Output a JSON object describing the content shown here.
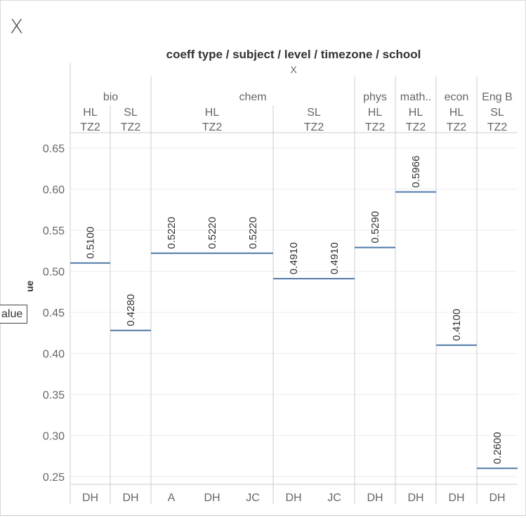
{
  "window": {
    "close_label": "X"
  },
  "header": {
    "title": "coeff type / subject / level / timezone / school",
    "subtitle": "X"
  },
  "axis": {
    "value_label": "alue",
    "value_label_rotated": "ue"
  },
  "colors": {
    "mark": "#4e79a7",
    "grid": "#eeeeee",
    "divider": "#cccccc",
    "text": "#666666"
  },
  "chart_data": {
    "type": "bar",
    "title": "coeff type / subject / level / timezone / school",
    "ylabel": "Value",
    "ylim": [
      0.24,
      0.67
    ],
    "yticks": [
      "0.65",
      "0.60",
      "0.55",
      "0.50",
      "0.45",
      "0.40",
      "0.35",
      "0.30",
      "0.25"
    ],
    "grid": true,
    "mark_style": "reference-line",
    "subjects": [
      {
        "name": "bio",
        "span": 2
      },
      {
        "name": "chem",
        "span": 5
      },
      {
        "name": "phys",
        "span": 1
      },
      {
        "name": "math..",
        "span": 1
      },
      {
        "name": "econ",
        "span": 1
      },
      {
        "name": "Eng B",
        "span": 1
      }
    ],
    "levels": [
      {
        "level": "HL",
        "timezone": "TZ2",
        "span": 1
      },
      {
        "level": "SL",
        "timezone": "TZ2",
        "span": 1
      },
      {
        "level": "HL",
        "timezone": "TZ2",
        "span": 3
      },
      {
        "level": "SL",
        "timezone": "TZ2",
        "span": 2
      },
      {
        "level": "HL",
        "timezone": "TZ2",
        "span": 1
      },
      {
        "level": "HL",
        "timezone": "TZ2",
        "span": 1
      },
      {
        "level": "HL",
        "timezone": "TZ2",
        "span": 1
      },
      {
        "level": "SL",
        "timezone": "TZ2",
        "span": 1
      }
    ],
    "categories": [
      "DH",
      "DH",
      "A",
      "DH",
      "JC",
      "DH",
      "JC",
      "DH",
      "DH",
      "DH",
      "DH"
    ],
    "values": [
      0.51,
      0.428,
      0.522,
      0.522,
      0.522,
      0.491,
      0.491,
      0.529,
      0.5966,
      0.41,
      0.26
    ],
    "value_labels": [
      "0.5100",
      "0.4280",
      "0.5220",
      "0.5220",
      "0.5220",
      "0.4910",
      "0.4910",
      "0.5290",
      "0.5966",
      "0.4100",
      "0.2600"
    ]
  }
}
